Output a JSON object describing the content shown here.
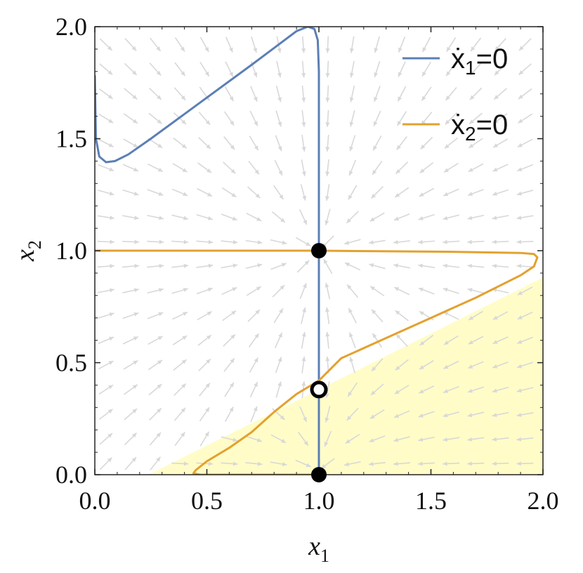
{
  "chart_data": {
    "type": "line",
    "title": "",
    "xlabel": {
      "base": "x",
      "sub": "1"
    },
    "ylabel": {
      "base": "x",
      "sub": "2"
    },
    "xlim": [
      0,
      2
    ],
    "ylim": [
      0,
      2
    ],
    "xticks": [
      "0.0",
      "0.5",
      "1.0",
      "1.5",
      "2.0"
    ],
    "yticks": [
      "0.0",
      "0.5",
      "1.0",
      "1.5",
      "2.0"
    ],
    "grid": false,
    "legend_position": "top-right",
    "series": [
      {
        "name": "ẋ1=0",
        "legend": {
          "base": "ẋ",
          "sub": "1",
          "rest": "=0"
        },
        "color": "#5B7FB5",
        "segments": [
          [
            [
              0.0,
              1.78
            ],
            [
              0.005,
              1.5
            ],
            [
              0.02,
              1.42
            ],
            [
              0.05,
              1.395
            ],
            [
              0.09,
              1.4
            ],
            [
              0.15,
              1.43
            ],
            [
              0.25,
              1.5
            ],
            [
              0.4,
              1.61
            ],
            [
              0.55,
              1.72
            ],
            [
              0.7,
              1.83
            ],
            [
              0.82,
              1.92
            ],
            [
              0.9,
              1.98
            ],
            [
              0.95,
              2.0
            ],
            [
              0.98,
              1.99
            ],
            [
              0.995,
              1.94
            ],
            [
              1.0,
              1.8
            ]
          ],
          [
            [
              1.0,
              1.8
            ],
            [
              1.0,
              0.0
            ]
          ]
        ]
      },
      {
        "name": "ẋ2=0",
        "legend": {
          "base": "ẋ",
          "sub": "2",
          "rest": "=0"
        },
        "color": "#E3A12F",
        "segments": [
          [
            [
              0.0,
              1.0
            ],
            [
              1.0,
              1.0
            ],
            [
              1.6,
              0.995
            ],
            [
              1.9,
              0.99
            ],
            [
              1.96,
              0.985
            ],
            [
              1.975,
              0.97
            ],
            [
              1.96,
              0.93
            ],
            [
              1.9,
              0.89
            ],
            [
              1.7,
              0.79
            ],
            [
              1.5,
              0.7
            ],
            [
              1.3,
              0.61
            ],
            [
              1.1,
              0.52
            ],
            [
              1.0,
              0.42
            ],
            [
              0.9,
              0.36
            ],
            [
              0.8,
              0.28
            ],
            [
              0.7,
              0.19
            ],
            [
              0.6,
              0.12
            ],
            [
              0.5,
              0.06
            ],
            [
              0.45,
              0.02
            ],
            [
              0.44,
              0.006
            ],
            [
              0.47,
              0.0
            ],
            [
              1.0,
              0.0
            ]
          ]
        ]
      }
    ],
    "shaded_region": {
      "color": "#FFFCC8",
      "polygon": [
        [
          0.24,
          0.0
        ],
        [
          2.0,
          0.0
        ],
        [
          2.0,
          0.88
        ],
        [
          0.24,
          0.0
        ]
      ]
    },
    "vector_field_color": "#D8D8D8",
    "equilibria": [
      {
        "x": 1.0,
        "y": 1.0,
        "marker": "filled"
      },
      {
        "x": 1.0,
        "y": 0.38,
        "marker": "open"
      },
      {
        "x": 1.0,
        "y": 0.0,
        "marker": "filled"
      }
    ]
  }
}
